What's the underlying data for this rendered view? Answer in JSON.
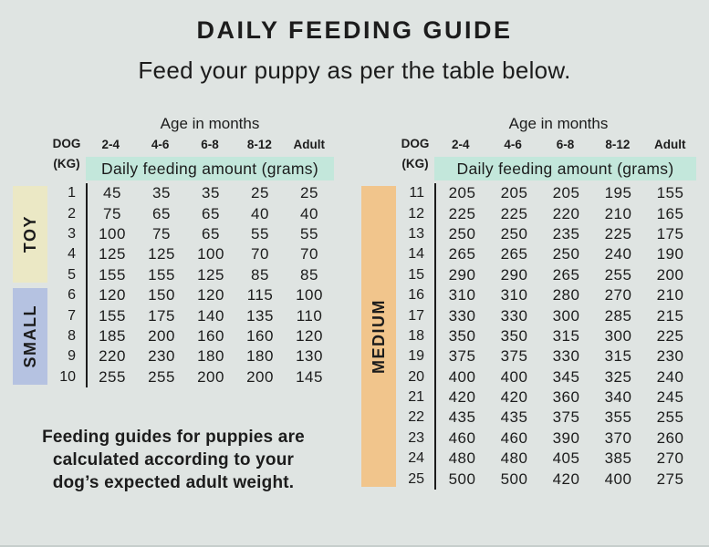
{
  "title": "DAILY FEEDING GUIDE",
  "subtitle": "Feed your puppy as per the table below.",
  "note_lines": [
    "Feeding guides for puppies are",
    "calculated according to your",
    "dog’s expected adult weight."
  ],
  "colors": {
    "background": "#dfe4e2",
    "text": "#1c1c1c",
    "band": "#c3e7db",
    "divider": "#1c1c1c",
    "toy": "#ebe8c5",
    "small": "#b5c2e1",
    "medium": "#f1c58c"
  },
  "tables": [
    {
      "age_header": "Age in months",
      "dog_label": "DOG",
      "kg_label": "(KG)",
      "age_columns": [
        "2-4",
        "4-6",
        "6-8",
        "8-12",
        "Adult"
      ],
      "band_label": "Daily feeding amount (grams)"
    },
    {
      "age_header": "Age in months",
      "dog_label": "DOG",
      "kg_label": "(KG)",
      "age_columns": [
        "2-4",
        "4-6",
        "6-8",
        "8-12",
        "Adult"
      ],
      "band_label": "Daily feeding amount (grams)"
    }
  ],
  "panels": [
    {
      "group_indexes": [
        0,
        1
      ]
    },
    {
      "group_indexes": [
        2
      ]
    }
  ],
  "chart_data": {
    "type": "table",
    "title": "DAILY FEEDING GUIDE",
    "subtitle": "Feed your puppy as per the table below.",
    "unit": "grams per day",
    "columns": [
      "Dog weight (kg)",
      "2-4 months",
      "4-6 months",
      "6-8 months",
      "8-12 months",
      "Adult"
    ],
    "size_groups": [
      {
        "name": "TOY",
        "color_key": "toy",
        "kg_range": [
          1,
          5
        ]
      },
      {
        "name": "SMALL",
        "color_key": "small",
        "kg_range": [
          6,
          10
        ]
      },
      {
        "name": "MEDIUM",
        "color_key": "medium",
        "kg_range": [
          11,
          25
        ]
      }
    ],
    "rows": [
      [
        1,
        45,
        35,
        35,
        25,
        25
      ],
      [
        2,
        75,
        65,
        65,
        40,
        40
      ],
      [
        3,
        100,
        75,
        65,
        55,
        55
      ],
      [
        4,
        125,
        125,
        100,
        70,
        70
      ],
      [
        5,
        155,
        155,
        125,
        85,
        85
      ],
      [
        6,
        120,
        150,
        120,
        115,
        100
      ],
      [
        7,
        155,
        175,
        140,
        135,
        110
      ],
      [
        8,
        185,
        200,
        160,
        160,
        120
      ],
      [
        9,
        220,
        230,
        180,
        180,
        130
      ],
      [
        10,
        255,
        255,
        200,
        200,
        145
      ],
      [
        11,
        205,
        205,
        205,
        195,
        155
      ],
      [
        12,
        225,
        225,
        220,
        210,
        165
      ],
      [
        13,
        250,
        250,
        235,
        225,
        175
      ],
      [
        14,
        265,
        265,
        250,
        240,
        190
      ],
      [
        15,
        290,
        290,
        265,
        255,
        200
      ],
      [
        16,
        310,
        310,
        280,
        270,
        210
      ],
      [
        17,
        330,
        330,
        300,
        285,
        215
      ],
      [
        18,
        350,
        350,
        315,
        300,
        225
      ],
      [
        19,
        375,
        375,
        330,
        315,
        230
      ],
      [
        20,
        400,
        400,
        345,
        325,
        240
      ],
      [
        21,
        420,
        420,
        360,
        340,
        245
      ],
      [
        22,
        435,
        435,
        375,
        355,
        255
      ],
      [
        23,
        460,
        460,
        390,
        370,
        260
      ],
      [
        24,
        480,
        480,
        405,
        385,
        270
      ],
      [
        25,
        500,
        500,
        420,
        400,
        275
      ]
    ]
  }
}
